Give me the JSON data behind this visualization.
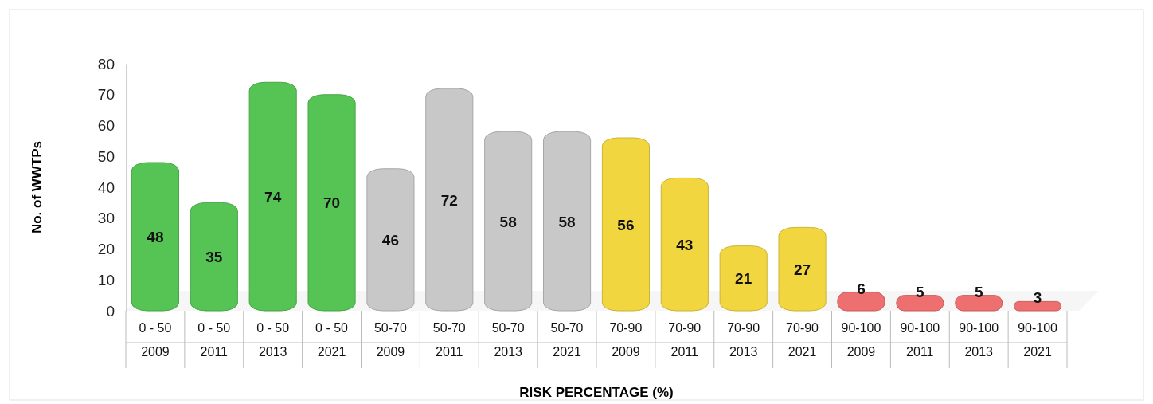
{
  "chart_data": {
    "type": "bar",
    "xlabel": "RISK PERCENTAGE (%)",
    "ylabel": "No. of WWTPs",
    "categories": [
      "0 - 50\n2009",
      "0 - 50\n2011",
      "0 - 50\n2013",
      "0 - 50\n2021",
      "50-70\n2009",
      "50-70\n2011",
      "50-70\n2013",
      "50-70\n2021",
      "70-90\n2009",
      "70-90\n2011",
      "70-90\n2013",
      "70-90\n2021",
      "90-100\n2009",
      "90-100\n2011",
      "90-100\n2013",
      "90-100\n2021"
    ],
    "values": [
      48,
      35,
      74,
      70,
      46,
      72,
      58,
      58,
      56,
      43,
      21,
      27,
      6,
      5,
      5,
      3
    ],
    "colors": [
      "#55c455",
      "#55c455",
      "#55c455",
      "#55c455",
      "#c8c8c8",
      "#c8c8c8",
      "#c8c8c8",
      "#c8c8c8",
      "#f2d640",
      "#f2d640",
      "#f2d640",
      "#f2d640",
      "#ee6f6f",
      "#ee6f6f",
      "#ee6f6f",
      "#ee6f6f"
    ],
    "data_labels": true,
    "ylim": [
      0,
      80
    ],
    "yticks": [
      0,
      10,
      20,
      30,
      40,
      50,
      60,
      70,
      80
    ]
  }
}
